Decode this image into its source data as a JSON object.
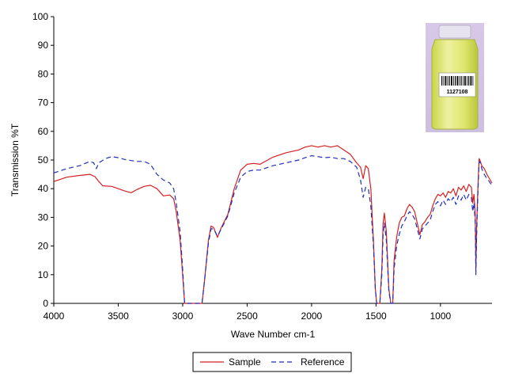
{
  "chart_data": {
    "type": "line",
    "xlabel": "Wave Number cm-1",
    "ylabel": "Transmission %T",
    "xlim": [
      4000,
      600
    ],
    "ylim": [
      0,
      100
    ],
    "x_reversed": true,
    "grid": false,
    "legend_position": "bottom",
    "xticks": [
      4000,
      3500,
      3000,
      2500,
      2000,
      1500,
      1000
    ],
    "yticks": [
      0,
      10,
      20,
      30,
      40,
      50,
      60,
      70,
      80,
      90,
      100
    ],
    "inset_label": "1127108",
    "series": [
      {
        "name": "Sample",
        "color": "#d42020",
        "style": "solid",
        "points": [
          [
            4000,
            42.5
          ],
          [
            3900,
            44.0
          ],
          [
            3800,
            44.6
          ],
          [
            3720,
            45.0
          ],
          [
            3680,
            44.2
          ],
          [
            3650,
            42.5
          ],
          [
            3620,
            41.0
          ],
          [
            3550,
            40.8
          ],
          [
            3500,
            40.0
          ],
          [
            3450,
            39.2
          ],
          [
            3400,
            38.6
          ],
          [
            3350,
            39.8
          ],
          [
            3300,
            40.8
          ],
          [
            3250,
            41.2
          ],
          [
            3200,
            40.0
          ],
          [
            3150,
            37.5
          ],
          [
            3100,
            37.8
          ],
          [
            3070,
            36.5
          ],
          [
            3050,
            32.0
          ],
          [
            3020,
            22.0
          ],
          [
            3000,
            10.0
          ],
          [
            2985,
            0.0
          ],
          [
            2960,
            0.0
          ],
          [
            2850,
            0.0
          ],
          [
            2830,
            8.0
          ],
          [
            2800,
            22.0
          ],
          [
            2780,
            27.0
          ],
          [
            2760,
            26.5
          ],
          [
            2730,
            23.0
          ],
          [
            2700,
            26.5
          ],
          [
            2650,
            31.0
          ],
          [
            2600,
            40.0
          ],
          [
            2550,
            46.5
          ],
          [
            2500,
            48.5
          ],
          [
            2450,
            48.8
          ],
          [
            2400,
            48.5
          ],
          [
            2300,
            51.0
          ],
          [
            2200,
            52.5
          ],
          [
            2100,
            53.5
          ],
          [
            2050,
            54.5
          ],
          [
            2000,
            55.0
          ],
          [
            1950,
            54.5
          ],
          [
            1900,
            55.0
          ],
          [
            1850,
            54.5
          ],
          [
            1800,
            55.0
          ],
          [
            1750,
            53.5
          ],
          [
            1700,
            52.0
          ],
          [
            1650,
            49.0
          ],
          [
            1620,
            47.5
          ],
          [
            1600,
            43.5
          ],
          [
            1580,
            48.0
          ],
          [
            1560,
            47.0
          ],
          [
            1540,
            40.0
          ],
          [
            1520,
            22.0
          ],
          [
            1505,
            5.0
          ],
          [
            1495,
            0.0
          ],
          [
            1470,
            0.0
          ],
          [
            1455,
            12.0
          ],
          [
            1445,
            28.0
          ],
          [
            1435,
            31.5
          ],
          [
            1420,
            25.0
          ],
          [
            1400,
            5.0
          ],
          [
            1385,
            0.0
          ],
          [
            1370,
            0.0
          ],
          [
            1360,
            15.0
          ],
          [
            1340,
            23.0
          ],
          [
            1320,
            28.0
          ],
          [
            1300,
            30.0
          ],
          [
            1280,
            30.5
          ],
          [
            1260,
            33.0
          ],
          [
            1240,
            34.5
          ],
          [
            1220,
            33.5
          ],
          [
            1200,
            32.0
          ],
          [
            1180,
            28.0
          ],
          [
            1160,
            24.0
          ],
          [
            1140,
            27.5
          ],
          [
            1120,
            28.5
          ],
          [
            1100,
            30.0
          ],
          [
            1080,
            31.0
          ],
          [
            1060,
            34.0
          ],
          [
            1040,
            36.5
          ],
          [
            1020,
            38.0
          ],
          [
            1000,
            37.5
          ],
          [
            980,
            38.5
          ],
          [
            960,
            37.0
          ],
          [
            940,
            39.0
          ],
          [
            920,
            38.5
          ],
          [
            900,
            40.0
          ],
          [
            880,
            37.5
          ],
          [
            860,
            40.5
          ],
          [
            840,
            39.5
          ],
          [
            820,
            41.0
          ],
          [
            800,
            39.0
          ],
          [
            780,
            41.5
          ],
          [
            760,
            40.5
          ],
          [
            750,
            35.0
          ],
          [
            740,
            38.0
          ],
          [
            730,
            31.0
          ],
          [
            725,
            12.0
          ],
          [
            720,
            25.0
          ],
          [
            710,
            40.0
          ],
          [
            700,
            50.5
          ],
          [
            690,
            49.5
          ],
          [
            680,
            48.0
          ],
          [
            660,
            47.0
          ],
          [
            640,
            45.0
          ],
          [
            620,
            43.5
          ],
          [
            600,
            42.0
          ]
        ]
      },
      {
        "name": "Reference",
        "color": "#1f2fbf",
        "style": "dashed",
        "points": [
          [
            4000,
            45.5
          ],
          [
            3900,
            47.0
          ],
          [
            3800,
            48.0
          ],
          [
            3720,
            49.5
          ],
          [
            3690,
            49.0
          ],
          [
            3670,
            47.0
          ],
          [
            3650,
            49.0
          ],
          [
            3600,
            50.5
          ],
          [
            3550,
            51.2
          ],
          [
            3500,
            50.8
          ],
          [
            3450,
            50.2
          ],
          [
            3400,
            49.8
          ],
          [
            3350,
            49.5
          ],
          [
            3300,
            49.5
          ],
          [
            3250,
            48.5
          ],
          [
            3200,
            45.0
          ],
          [
            3150,
            43.0
          ],
          [
            3100,
            42.0
          ],
          [
            3070,
            40.0
          ],
          [
            3050,
            35.0
          ],
          [
            3020,
            25.0
          ],
          [
            3000,
            12.0
          ],
          [
            2985,
            0.0
          ],
          [
            2960,
            0.0
          ],
          [
            2850,
            0.0
          ],
          [
            2830,
            8.0
          ],
          [
            2800,
            21.0
          ],
          [
            2780,
            26.0
          ],
          [
            2760,
            26.0
          ],
          [
            2730,
            23.5
          ],
          [
            2700,
            26.0
          ],
          [
            2650,
            30.5
          ],
          [
            2600,
            38.5
          ],
          [
            2550,
            44.0
          ],
          [
            2500,
            46.0
          ],
          [
            2450,
            46.5
          ],
          [
            2400,
            46.5
          ],
          [
            2300,
            48.0
          ],
          [
            2200,
            49.0
          ],
          [
            2100,
            50.0
          ],
          [
            2050,
            50.8
          ],
          [
            2000,
            51.5
          ],
          [
            1950,
            51.2
          ],
          [
            1900,
            50.8
          ],
          [
            1850,
            51.0
          ],
          [
            1800,
            50.5
          ],
          [
            1750,
            50.5
          ],
          [
            1700,
            49.5
          ],
          [
            1650,
            47.5
          ],
          [
            1620,
            43.0
          ],
          [
            1600,
            37.0
          ],
          [
            1580,
            40.5
          ],
          [
            1560,
            40.0
          ],
          [
            1540,
            34.0
          ],
          [
            1520,
            20.0
          ],
          [
            1505,
            5.0
          ],
          [
            1495,
            0.0
          ],
          [
            1470,
            0.0
          ],
          [
            1455,
            10.0
          ],
          [
            1445,
            24.0
          ],
          [
            1435,
            28.0
          ],
          [
            1420,
            22.0
          ],
          [
            1400,
            4.0
          ],
          [
            1385,
            0.0
          ],
          [
            1370,
            0.0
          ],
          [
            1360,
            12.0
          ],
          [
            1340,
            20.0
          ],
          [
            1320,
            24.0
          ],
          [
            1300,
            27.0
          ],
          [
            1280,
            28.5
          ],
          [
            1260,
            30.5
          ],
          [
            1240,
            32.0
          ],
          [
            1220,
            31.0
          ],
          [
            1200,
            29.5
          ],
          [
            1180,
            26.0
          ],
          [
            1160,
            22.5
          ],
          [
            1140,
            26.0
          ],
          [
            1120,
            27.0
          ],
          [
            1100,
            28.0
          ],
          [
            1080,
            29.0
          ],
          [
            1060,
            32.0
          ],
          [
            1040,
            34.5
          ],
          [
            1020,
            35.5
          ],
          [
            1000,
            34.0
          ],
          [
            980,
            36.0
          ],
          [
            960,
            34.5
          ],
          [
            940,
            36.5
          ],
          [
            920,
            35.5
          ],
          [
            900,
            37.0
          ],
          [
            880,
            34.5
          ],
          [
            860,
            37.5
          ],
          [
            840,
            36.0
          ],
          [
            820,
            38.0
          ],
          [
            800,
            36.0
          ],
          [
            780,
            38.0
          ],
          [
            760,
            37.0
          ],
          [
            750,
            32.0
          ],
          [
            740,
            35.0
          ],
          [
            730,
            28.0
          ],
          [
            725,
            10.0
          ],
          [
            720,
            22.0
          ],
          [
            710,
            38.0
          ],
          [
            700,
            49.5
          ],
          [
            690,
            49.0
          ],
          [
            680,
            47.0
          ],
          [
            660,
            45.0
          ],
          [
            640,
            43.5
          ],
          [
            620,
            42.5
          ],
          [
            600,
            41.0
          ]
        ]
      }
    ]
  }
}
